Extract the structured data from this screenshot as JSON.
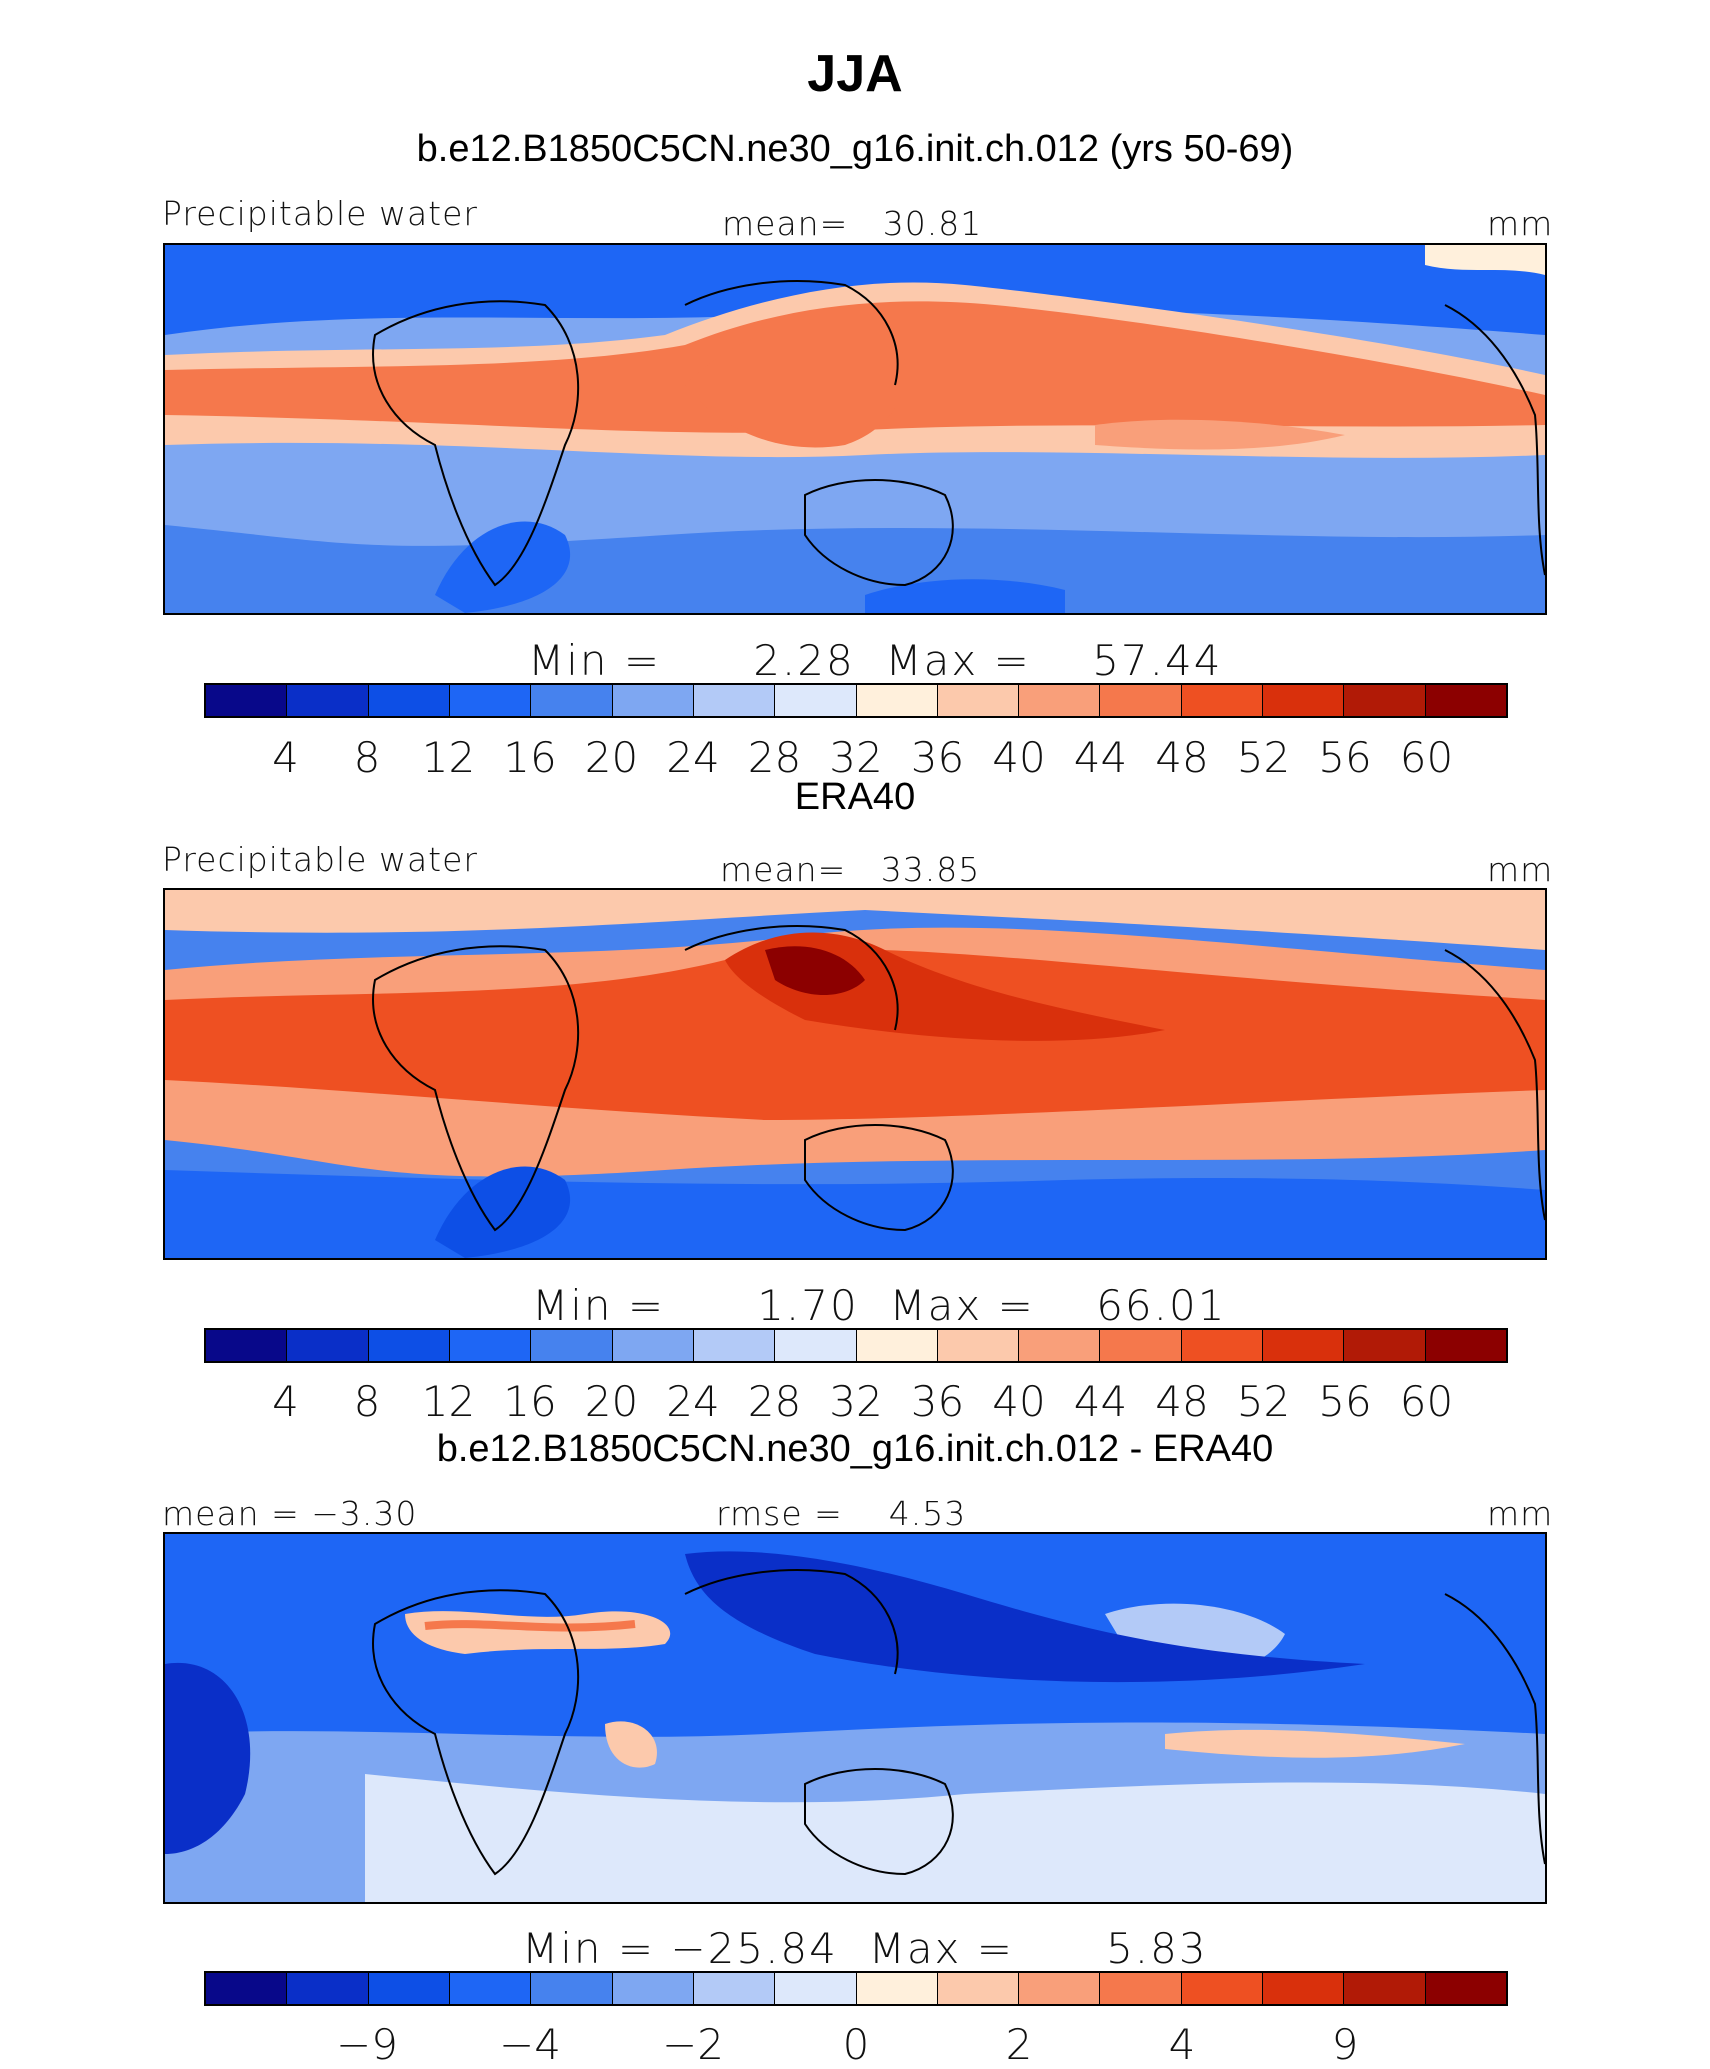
{
  "title": "JJA",
  "units": "mm",
  "colorbar_colors": [
    "#08088a",
    "#0a2fc8",
    "#0d4fe6",
    "#1e66f5",
    "#4682ee",
    "#7ea7f2",
    "#b3caf7",
    "#dde8fb",
    "#fff0dc",
    "#fcc9ac",
    "#f99f7a",
    "#f5784c",
    "#ee5022",
    "#d9300c",
    "#b11a06",
    "#8c0000"
  ],
  "chart_data": [
    {
      "type": "heatmap",
      "title": "b.e12.B1850C5CN.ne30_g16.init.ch.012 (yrs 50-69)",
      "variable": "Precipitable water",
      "mean_label": "mean=",
      "mean": "30.81",
      "units": "mm",
      "min_label": "Min  =",
      "min": "2.28",
      "max_label": "Max  =",
      "max": "57.44",
      "levels": [
        "4",
        "8",
        "12",
        "16",
        "20",
        "24",
        "28",
        "32",
        "36",
        "40",
        "44",
        "48",
        "52",
        "56",
        "60"
      ]
    },
    {
      "type": "heatmap",
      "title": "ERA40",
      "variable": "Precipitable water",
      "mean_label": "mean=",
      "mean": "33.85",
      "units": "mm",
      "min_label": "Min  =",
      "min": "1.70",
      "max_label": "Max  =",
      "max": "66.01",
      "levels": [
        "4",
        "8",
        "12",
        "16",
        "20",
        "24",
        "28",
        "32",
        "36",
        "40",
        "44",
        "48",
        "52",
        "56",
        "60"
      ]
    },
    {
      "type": "heatmap",
      "title": "b.e12.B1850C5CN.ne30_g16.init.ch.012 - ERA40",
      "mean_label": "mean  =",
      "mean": "−3.30",
      "rmse_label": "rmse  =",
      "rmse": "4.53",
      "units": "mm",
      "min_label": "Min  =",
      "min": "−25.84",
      "max_label": "Max  =",
      "max": "5.83",
      "levels": [
        "−9",
        "−4",
        "−2",
        "0",
        "2",
        "4",
        "9"
      ]
    }
  ]
}
